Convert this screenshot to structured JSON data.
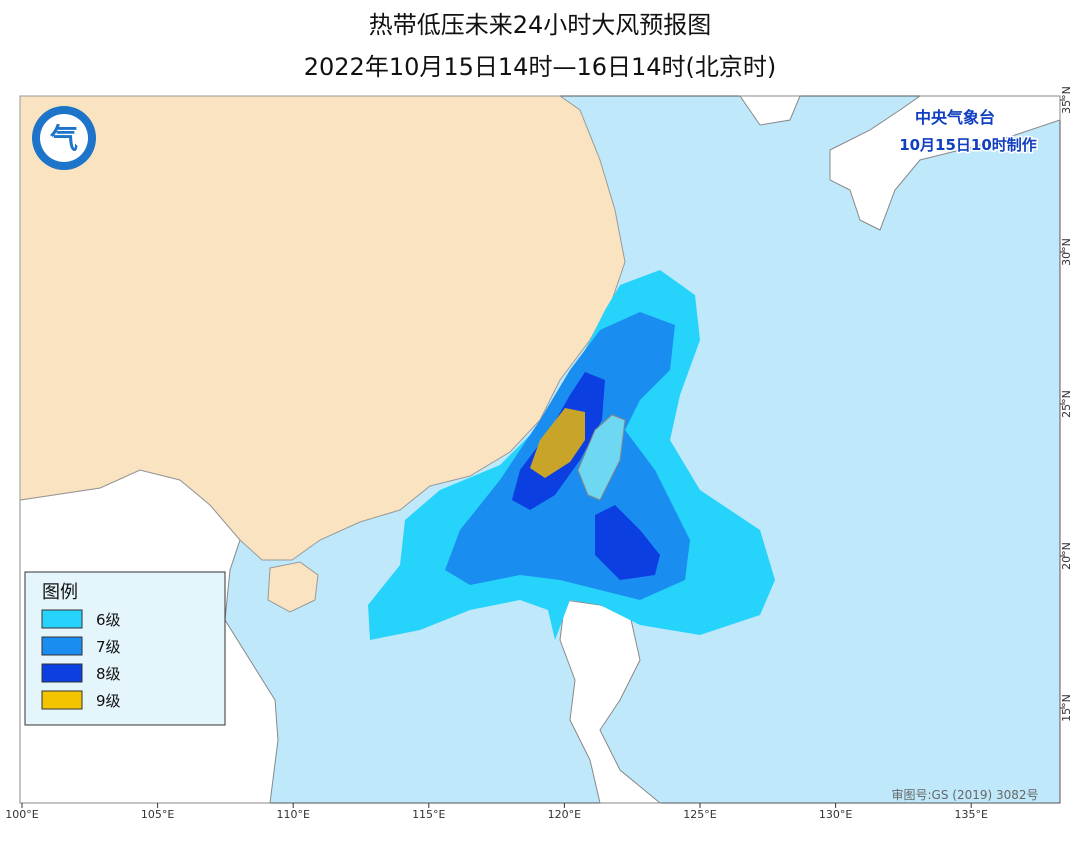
{
  "header": {
    "title": "热带低压未来24小时大风预报图",
    "subtitle": "2022年10月15日14时—16日14时(北京时)"
  },
  "issuer": {
    "name": "中央气象台",
    "made": "10月15日10时制作"
  },
  "legend": {
    "title": "图例",
    "items": [
      {
        "label": "6级",
        "color": "#26d3fb"
      },
      {
        "label": "7级",
        "color": "#1a8ef0"
      },
      {
        "label": "8级",
        "color": "#0b3fe2"
      },
      {
        "label": "9级",
        "color": "#f5c400"
      }
    ]
  },
  "axes": {
    "lon_labels": [
      "100°E",
      "105°E",
      "110°E",
      "115°E",
      "120°E",
      "125°E",
      "130°E",
      "135°E"
    ],
    "lat_labels": [
      "35°N",
      "30°N",
      "25°N",
      "20°N",
      "15°N"
    ]
  },
  "footer": {
    "approval": "审图号:GS (2019) 3082号"
  }
}
